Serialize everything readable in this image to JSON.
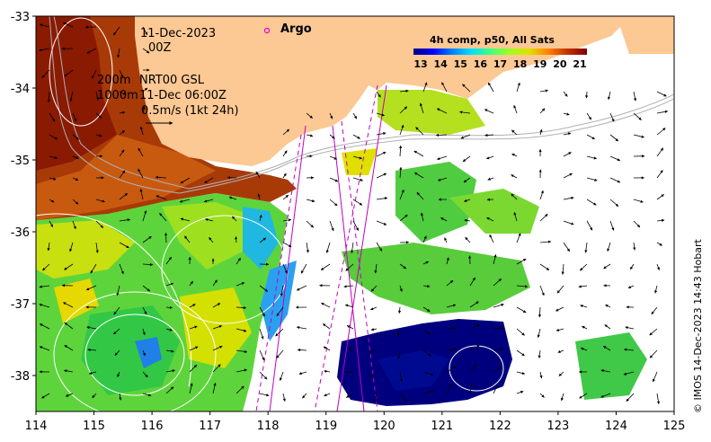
{
  "map": {
    "date_label": "11-Dec-2023",
    "hour_label": "00Z",
    "argo_label": "Argo",
    "contour_label_200": "200m",
    "contour_label_1000": "1000m",
    "source_label": "NRT00 GSL",
    "valid_label": "11-Dec 06:00Z",
    "scale_label": "0.5m/s (1kt 24h)",
    "credit": "© IMOS 14-Dec-2023 14:43 Hobart",
    "colorbar": {
      "title": "4h comp, p50, All Sats",
      "ticks": [
        "13",
        "14",
        "15",
        "16",
        "17",
        "18",
        "19",
        "20",
        "21"
      ],
      "colors": [
        "#00007f",
        "#0000ff",
        "#0080ff",
        "#00e0ff",
        "#40ff80",
        "#a0ff20",
        "#e0e000",
        "#ff8000",
        "#c03000",
        "#7f0000"
      ]
    },
    "x_axis": {
      "ticks": [
        "114",
        "115",
        "116",
        "117",
        "118",
        "119",
        "120",
        "121",
        "122",
        "123",
        "124",
        "125"
      ],
      "range": [
        114,
        125
      ]
    },
    "y_axis": {
      "ticks": [
        "-33",
        "-34",
        "-35",
        "-36",
        "-37",
        "-38"
      ],
      "range": [
        -38.5,
        -33
      ]
    },
    "land_color": "#fcc894"
  }
}
